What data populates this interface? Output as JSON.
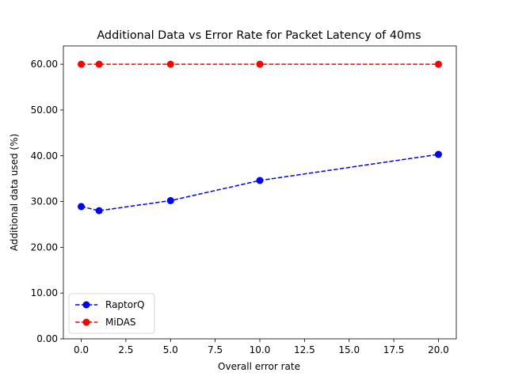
{
  "chart_data": {
    "type": "line",
    "title": "Additional Data vs Error Rate for Packet Latency of 40ms",
    "xlabel": "Overall error rate",
    "ylabel": "Additional data used (%)",
    "x": [
      0.0,
      1.0,
      5.0,
      10.0,
      20.0
    ],
    "xlim": [
      -1.0,
      21.0
    ],
    "ylim": [
      0.0,
      64.0
    ],
    "xticks": [
      0.0,
      2.5,
      5.0,
      7.5,
      10.0,
      12.5,
      15.0,
      17.5,
      20.0
    ],
    "xtick_labels": [
      "0.0",
      "2.5",
      "5.0",
      "7.5",
      "10.0",
      "12.5",
      "15.0",
      "17.5",
      "20.0"
    ],
    "yticks": [
      0,
      10,
      20,
      30,
      40,
      50,
      60
    ],
    "ytick_labels": [
      "0.00",
      "10.00",
      "20.00",
      "30.00",
      "40.00",
      "50.00",
      "60.00"
    ],
    "grid": false,
    "legend_position": "lower-left",
    "series": [
      {
        "name": "RaptorQ",
        "color": "#0000ff",
        "line_style": "dashed",
        "marker": "circle",
        "values": [
          28.9,
          28.0,
          30.2,
          34.6,
          40.3
        ]
      },
      {
        "name": "MiDAS",
        "color": "#ff0000",
        "line_style": "dashed",
        "marker": "circle",
        "values": [
          60.0,
          60.0,
          60.0,
          60.0,
          60.0
        ]
      }
    ]
  }
}
